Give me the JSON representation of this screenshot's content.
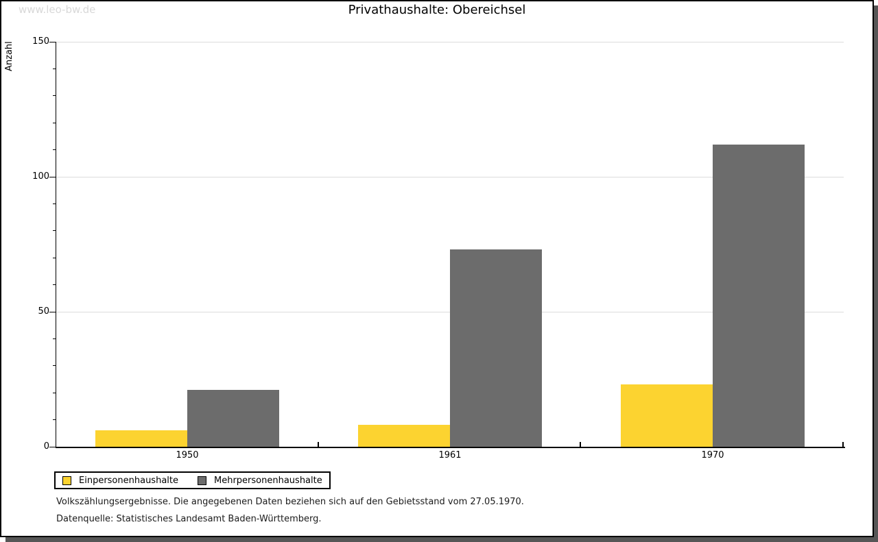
{
  "watermark": "www.leo-bw.de",
  "footnotes": [
    "Volkszählungsergebnisse. Die angegebenen Daten beziehen sich auf den Gebietsstand vom 27.05.1970.",
    "Datenquelle: Statistisches Landesamt Baden-Württemberg."
  ],
  "chart_data": {
    "type": "bar",
    "title": "Privathaushalte: Obereichsel",
    "ylabel": "Anzahl",
    "xlabel": "",
    "categories": [
      "1950",
      "1961",
      "1970"
    ],
    "series": [
      {
        "name": "Einpersonenhaushalte",
        "color": "#FCD330",
        "values": [
          6,
          8,
          23
        ]
      },
      {
        "name": "Mehrpersonenhaushalte",
        "color": "#6C6C6C",
        "values": [
          21,
          73,
          112
        ]
      }
    ],
    "ylim": [
      0,
      150
    ],
    "yticks_major": [
      0,
      50,
      100,
      150
    ],
    "ytick_minor_step": 10,
    "grid": "horizontal major gridlines",
    "legend_position": "bottom-left boxed",
    "colors": {
      "gridline": "#dcdcdc",
      "axis": "#000000",
      "shadow": "#565656",
      "watermark_text": "#d8d8d8"
    }
  }
}
